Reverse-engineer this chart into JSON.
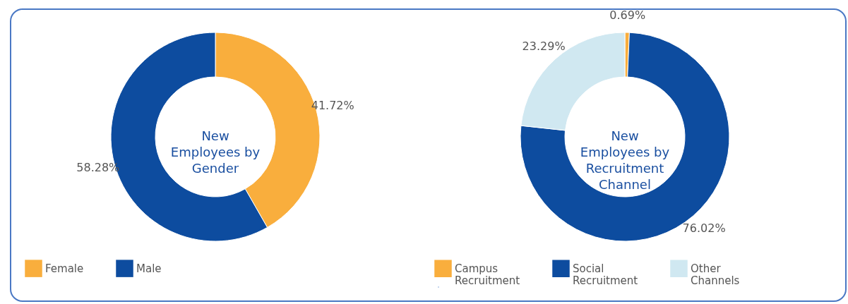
{
  "chart_data": [
    {
      "type": "donut",
      "title": "New Employees by Gender",
      "categories": [
        "Female",
        "Male"
      ],
      "values": [
        41.72,
        58.28
      ],
      "value_labels": [
        "41.72%",
        "58.28%"
      ],
      "colors": [
        "#f9ae3d",
        "#0d4c9f"
      ],
      "legend": "bottom"
    },
    {
      "type": "donut",
      "title": "New Employees by Recruitment Channel",
      "categories": [
        "Campus Recruitment",
        "Social Recruitment",
        "Other Channels"
      ],
      "values": [
        0.69,
        76.02,
        23.29
      ],
      "value_labels": [
        "0.69%",
        "76.02%",
        "23.29%"
      ],
      "colors": [
        "#f9ae3d",
        "#0d4c9f",
        "#d0e8f1"
      ],
      "legend": "bottom"
    }
  ]
}
